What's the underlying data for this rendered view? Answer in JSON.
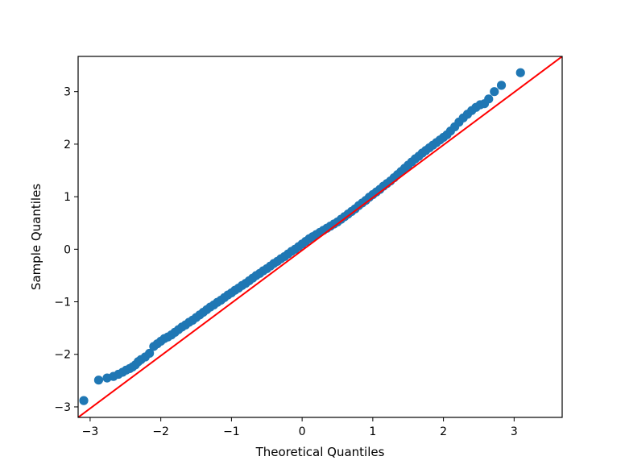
{
  "chart_data": {
    "type": "scatter",
    "title": "",
    "xlabel": "Theoretical Quantiles",
    "ylabel": "Sample Quantiles",
    "xlim": [
      -3.17,
      3.68
    ],
    "ylim": [
      -3.2,
      3.67
    ],
    "xticks": [
      -3,
      -2,
      -1,
      0,
      1,
      2,
      3
    ],
    "xtick_labels": [
      "−3",
      "−2",
      "−1",
      "0",
      "1",
      "2",
      "3"
    ],
    "yticks": [
      -3,
      -2,
      -1,
      0,
      1,
      2,
      3
    ],
    "ytick_labels": [
      "−3",
      "−2",
      "−1",
      "0",
      "1",
      "2",
      "3"
    ],
    "grid": false,
    "legend": "none",
    "colors": {
      "points": "#1f77b4",
      "reference_line": "#ff0000"
    },
    "series": [
      {
        "type": "scatter",
        "x": [
          -3.09,
          -2.88,
          -2.76,
          -2.67,
          -2.6,
          -2.54,
          -2.49,
          -2.44,
          -2.4,
          -2.36,
          -2.32,
          -2.28,
          -2.22,
          -2.16,
          -2.1,
          -2.05,
          -2.0,
          -1.95,
          -1.9,
          -1.85,
          -1.8,
          -1.75,
          -1.7,
          -1.65,
          -1.6,
          -1.55,
          -1.5,
          -1.45,
          -1.4,
          -1.35,
          -1.3,
          -1.25,
          -1.2,
          -1.15,
          -1.1,
          -1.05,
          -1.0,
          -0.95,
          -0.9,
          -0.85,
          -0.8,
          -0.75,
          -0.7,
          -0.65,
          -0.6,
          -0.55,
          -0.5,
          -0.45,
          -0.4,
          -0.35,
          -0.3,
          -0.25,
          -0.2,
          -0.15,
          -0.1,
          -0.05,
          0.0,
          0.05,
          0.1,
          0.15,
          0.2,
          0.25,
          0.3,
          0.35,
          0.4,
          0.45,
          0.5,
          0.55,
          0.6,
          0.65,
          0.7,
          0.75,
          0.8,
          0.85,
          0.9,
          0.95,
          1.0,
          1.05,
          1.1,
          1.15,
          1.2,
          1.25,
          1.3,
          1.35,
          1.4,
          1.45,
          1.5,
          1.55,
          1.6,
          1.65,
          1.7,
          1.75,
          1.8,
          1.85,
          1.9,
          1.95,
          2.0,
          2.05,
          2.1,
          2.16,
          2.22,
          2.28,
          2.34,
          2.4,
          2.46,
          2.52,
          2.58,
          2.64,
          2.72,
          2.82,
          3.09
        ],
        "y": [
          -2.88,
          -2.49,
          -2.45,
          -2.42,
          -2.38,
          -2.34,
          -2.3,
          -2.27,
          -2.24,
          -2.2,
          -2.14,
          -2.1,
          -2.05,
          -1.98,
          -1.85,
          -1.8,
          -1.75,
          -1.7,
          -1.67,
          -1.63,
          -1.58,
          -1.53,
          -1.48,
          -1.44,
          -1.39,
          -1.35,
          -1.3,
          -1.25,
          -1.2,
          -1.15,
          -1.1,
          -1.06,
          -1.01,
          -0.97,
          -0.92,
          -0.87,
          -0.83,
          -0.78,
          -0.74,
          -0.69,
          -0.65,
          -0.6,
          -0.55,
          -0.5,
          -0.46,
          -0.41,
          -0.37,
          -0.32,
          -0.27,
          -0.23,
          -0.18,
          -0.14,
          -0.09,
          -0.04,
          0.0,
          0.05,
          0.1,
          0.15,
          0.2,
          0.24,
          0.28,
          0.32,
          0.36,
          0.4,
          0.44,
          0.48,
          0.52,
          0.57,
          0.62,
          0.67,
          0.72,
          0.77,
          0.83,
          0.88,
          0.93,
          0.99,
          1.04,
          1.09,
          1.14,
          1.2,
          1.25,
          1.3,
          1.36,
          1.42,
          1.48,
          1.54,
          1.6,
          1.66,
          1.72,
          1.77,
          1.83,
          1.88,
          1.93,
          1.98,
          2.03,
          2.08,
          2.13,
          2.18,
          2.25,
          2.33,
          2.42,
          2.5,
          2.57,
          2.64,
          2.7,
          2.75,
          2.77,
          2.86,
          3.0,
          3.12,
          3.36
        ]
      },
      {
        "type": "line",
        "x": [
          -3.17,
          3.68
        ],
        "y": [
          -3.2,
          3.67
        ]
      }
    ]
  }
}
